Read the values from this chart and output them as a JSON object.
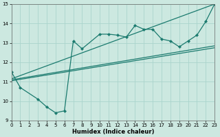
{
  "xlabel": "Humidex (Indice chaleur)",
  "bg_color": "#cce8e0",
  "grid_color": "#aad4cc",
  "line_color": "#1a7a6e",
  "xlim": [
    0,
    23
  ],
  "ylim": [
    9,
    15
  ],
  "xticks": [
    0,
    1,
    2,
    3,
    4,
    5,
    6,
    7,
    8,
    9,
    10,
    11,
    12,
    13,
    14,
    15,
    16,
    17,
    18,
    19,
    20,
    21,
    22,
    23
  ],
  "yticks": [
    9,
    10,
    11,
    12,
    13,
    14,
    15
  ],
  "series1_x": [
    0,
    1,
    3,
    4,
    5,
    6,
    7,
    8,
    10,
    11,
    12,
    13,
    14,
    15,
    16,
    17,
    18,
    19,
    20,
    21,
    22,
    23
  ],
  "series1_y": [
    11.5,
    10.7,
    10.1,
    9.7,
    9.4,
    9.5,
    13.1,
    12.7,
    13.45,
    13.45,
    13.4,
    13.3,
    13.9,
    13.7,
    13.7,
    13.2,
    13.1,
    12.8,
    13.1,
    13.4,
    14.1,
    15.0
  ],
  "trend1_x": [
    0,
    23
  ],
  "trend1_y": [
    11.05,
    12.75
  ],
  "trend2_x": [
    0,
    23
  ],
  "trend2_y": [
    11.1,
    12.85
  ],
  "trend3_x": [
    0,
    23
  ],
  "trend3_y": [
    11.15,
    15.0
  ]
}
